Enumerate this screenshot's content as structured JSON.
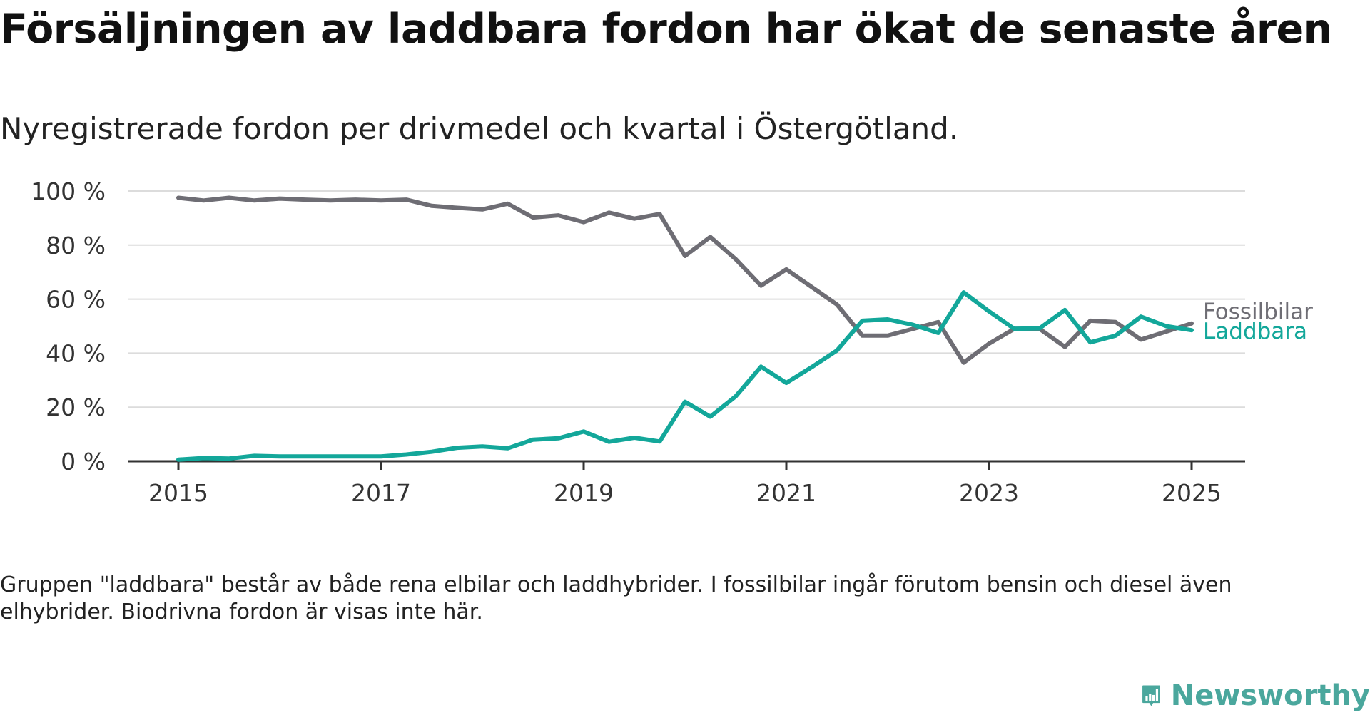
{
  "title": "Försäljningen av laddbara fordon har ökat de senaste åren",
  "subtitle": "Nyregistrerade fordon per drivmedel och kvartal i Östergötland.",
  "note": "Gruppen \"laddbara\" består av både rena elbilar och laddhybrider. I fossilbilar ingår förutom bensin och diesel även elhybrider. Biodrivna fordon är visas inte här.",
  "brand": {
    "name": "Newsworthy",
    "icon": "newsworthy-logo-icon",
    "color": "#4aa79d"
  },
  "chart_data": {
    "type": "line",
    "title": "Försäljningen av laddbara fordon har ökat de senaste åren",
    "subtitle": "Nyregistrerade fordon per drivmedel och kvartal i Östergötland.",
    "xlabel": "",
    "ylabel": "",
    "x_ticks": [
      "2015",
      "2017",
      "2019",
      "2021",
      "2023",
      "2025"
    ],
    "y_ticks": [
      "0 %",
      "20 %",
      "40 %",
      "60 %",
      "80 %",
      "100 %"
    ],
    "ylim": [
      0,
      100
    ],
    "grid": true,
    "legend": "direct labels at line ends (right)",
    "x": [
      "2015 Q1",
      "2015 Q2",
      "2015 Q3",
      "2015 Q4",
      "2016 Q1",
      "2016 Q2",
      "2016 Q3",
      "2016 Q4",
      "2017 Q1",
      "2017 Q2",
      "2017 Q3",
      "2017 Q4",
      "2018 Q1",
      "2018 Q2",
      "2018 Q3",
      "2018 Q4",
      "2019 Q1",
      "2019 Q2",
      "2019 Q3",
      "2019 Q4",
      "2020 Q1",
      "2020 Q2",
      "2020 Q3",
      "2020 Q4",
      "2021 Q1",
      "2021 Q2",
      "2021 Q3",
      "2021 Q4",
      "2022 Q1",
      "2022 Q2",
      "2022 Q3",
      "2022 Q4",
      "2023 Q1",
      "2023 Q2",
      "2023 Q3",
      "2023 Q4",
      "2024 Q1",
      "2024 Q2",
      "2024 Q3",
      "2024 Q4",
      "2025 Q1"
    ],
    "series": [
      {
        "name": "Fossilbilar",
        "color": "#6e6d74",
        "values": [
          97.5,
          96.5,
          97.5,
          96.5,
          97.2,
          96.8,
          96.5,
          96.8,
          96.5,
          96.8,
          94.5,
          93.8,
          93.2,
          95.3,
          90.2,
          91.0,
          88.5,
          92.0,
          89.8,
          91.5,
          76.0,
          83.0,
          74.8,
          65.0,
          71.0,
          64.5,
          58.0,
          46.5,
          46.5,
          49.0,
          51.5,
          36.5,
          43.5,
          49.0,
          49.0,
          42.3,
          52.0,
          51.5,
          45.0,
          48.0,
          51.0
        ]
      },
      {
        "name": "Laddbara",
        "color": "#13a79a",
        "values": [
          0.6,
          1.2,
          1.0,
          2.0,
          1.8,
          1.8,
          1.8,
          1.8,
          1.8,
          2.5,
          3.5,
          5.0,
          5.5,
          4.8,
          8.0,
          8.5,
          11.0,
          7.2,
          8.7,
          7.3,
          22.0,
          16.5,
          24.0,
          35.0,
          29.0,
          34.8,
          41.0,
          52.0,
          52.5,
          50.5,
          47.5,
          62.5,
          55.5,
          49.0,
          49.2,
          56.0,
          44.0,
          46.5,
          53.5,
          50.0,
          48.5
        ]
      }
    ]
  }
}
